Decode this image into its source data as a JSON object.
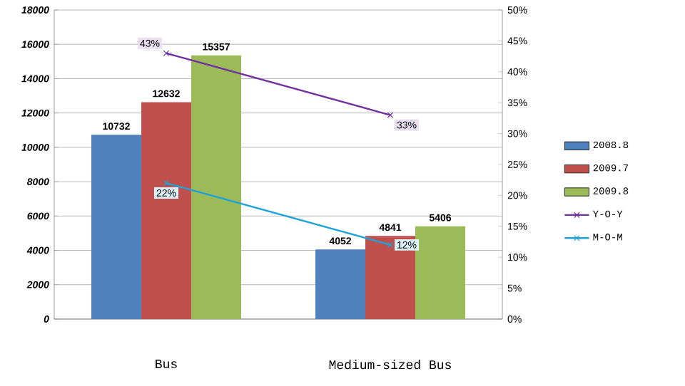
{
  "chart_data": {
    "type": "bar",
    "categories": [
      "Bus",
      "Medium-sized Bus"
    ],
    "series": [
      {
        "name": "2008.8",
        "color": "#4f81bd",
        "values": [
          10732,
          4052
        ]
      },
      {
        "name": "2009.7",
        "color": "#c0504d",
        "values": [
          12632,
          4841
        ]
      },
      {
        "name": "2009.8",
        "color": "#9bbb59",
        "values": [
          15357,
          5406
        ]
      },
      {
        "name": "Y-O-Y",
        "type": "line",
        "axis": "y2",
        "color": "#7030a0",
        "values": [
          43,
          33
        ],
        "value_labels": [
          "43%",
          "33%"
        ]
      },
      {
        "name": "M-O-M",
        "type": "line",
        "axis": "y2",
        "color": "#1fa2d8",
        "values": [
          22,
          12
        ],
        "value_labels": [
          "22%",
          "12%"
        ]
      }
    ],
    "ylim": [
      0,
      18000
    ],
    "yticks": [
      0,
      2000,
      4000,
      6000,
      8000,
      10000,
      12000,
      14000,
      16000,
      18000
    ],
    "y2lim": [
      0,
      50
    ],
    "y2ticks": [
      {
        "value": 0,
        "label": "0%"
      },
      {
        "value": 5,
        "label": "5%"
      },
      {
        "value": 10,
        "label": "10%"
      },
      {
        "value": 15,
        "label": "15%"
      },
      {
        "value": 20,
        "label": "20%"
      },
      {
        "value": 25,
        "label": "25%"
      },
      {
        "value": 30,
        "label": "30%"
      },
      {
        "value": 35,
        "label": "35%"
      },
      {
        "value": 40,
        "label": "40%"
      },
      {
        "value": 45,
        "label": "45%"
      },
      {
        "value": 50,
        "label": "50%"
      }
    ],
    "grid": "y",
    "legend": "right",
    "marker": "cross",
    "data_labels": true
  }
}
